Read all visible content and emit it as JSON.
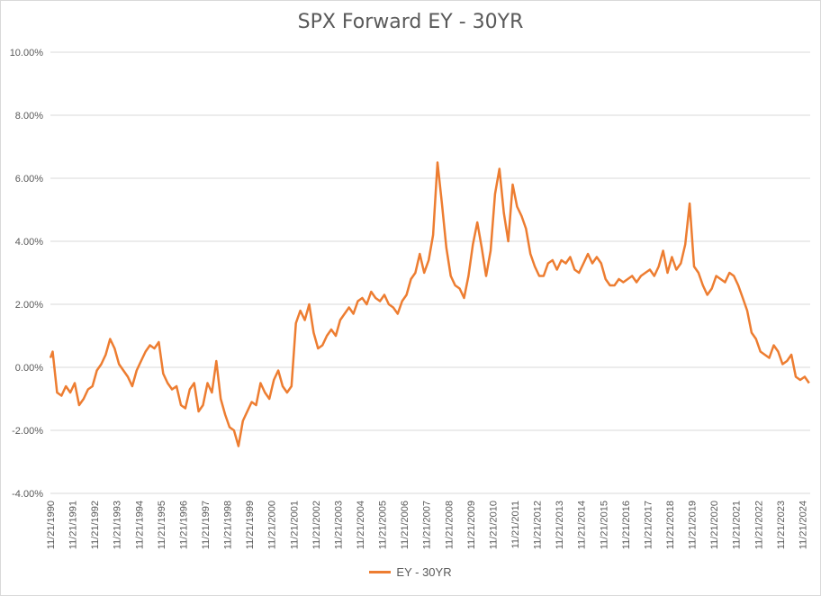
{
  "chart_data": {
    "type": "line",
    "title": "SPX Forward EY - 30YR",
    "xlabel": "",
    "ylabel": "",
    "ylim": [
      -4,
      10
    ],
    "y_ticks": [
      "10.00%",
      "8.00%",
      "6.00%",
      "4.00%",
      "2.00%",
      "0.00%",
      "-2.00%",
      "-4.00%"
    ],
    "x_tick_labels": [
      "11/21/1990",
      "11/21/1991",
      "11/21/1992",
      "11/21/1993",
      "11/21/1994",
      "11/21/1995",
      "11/21/1996",
      "11/21/1997",
      "11/21/1998",
      "11/21/1999",
      "11/21/2000",
      "11/21/2001",
      "11/21/2002",
      "11/21/2003",
      "11/21/2004",
      "11/21/2005",
      "11/21/2006",
      "11/21/2007",
      "11/21/2008",
      "11/21/2009",
      "11/21/2010",
      "11/21/2011",
      "11/21/2012",
      "11/21/2013",
      "11/21/2014",
      "11/21/2015",
      "11/21/2016",
      "11/21/2017",
      "11/21/2018",
      "11/21/2019",
      "11/21/2020",
      "11/21/2021",
      "11/21/2022",
      "11/21/2023",
      "11/21/2024"
    ],
    "grid": true,
    "legend": "bottom",
    "series": [
      {
        "name": "EY - 30YR",
        "color": "#ED7D31",
        "x": [
          1990.9,
          1991.0,
          1991.2,
          1991.4,
          1991.6,
          1991.8,
          1992.0,
          1992.2,
          1992.4,
          1992.6,
          1992.8,
          1993.0,
          1993.2,
          1993.4,
          1993.6,
          1993.8,
          1994.0,
          1994.2,
          1994.4,
          1994.6,
          1994.8,
          1995.0,
          1995.2,
          1995.4,
          1995.6,
          1995.8,
          1996.0,
          1996.2,
          1996.4,
          1996.6,
          1996.8,
          1997.0,
          1997.2,
          1997.4,
          1997.6,
          1997.8,
          1998.0,
          1998.2,
          1998.4,
          1998.6,
          1998.8,
          1999.0,
          1999.2,
          1999.4,
          1999.6,
          1999.8,
          2000.0,
          2000.2,
          2000.4,
          2000.6,
          2000.8,
          2001.0,
          2001.2,
          2001.4,
          2001.6,
          2001.8,
          2002.0,
          2002.2,
          2002.4,
          2002.6,
          2002.8,
          2003.0,
          2003.2,
          2003.4,
          2003.6,
          2003.8,
          2004.0,
          2004.2,
          2004.4,
          2004.6,
          2004.8,
          2005.0,
          2005.2,
          2005.4,
          2005.6,
          2005.8,
          2006.0,
          2006.2,
          2006.4,
          2006.6,
          2006.8,
          2007.0,
          2007.2,
          2007.4,
          2007.6,
          2007.8,
          2008.0,
          2008.2,
          2008.4,
          2008.6,
          2008.8,
          2009.0,
          2009.2,
          2009.4,
          2009.6,
          2009.8,
          2010.0,
          2010.2,
          2010.4,
          2010.6,
          2010.8,
          2011.0,
          2011.2,
          2011.4,
          2011.6,
          2011.8,
          2012.0,
          2012.2,
          2012.4,
          2012.6,
          2012.8,
          2013.0,
          2013.2,
          2013.4,
          2013.6,
          2013.8,
          2014.0,
          2014.2,
          2014.4,
          2014.6,
          2014.8,
          2015.0,
          2015.2,
          2015.4,
          2015.6,
          2015.8,
          2016.0,
          2016.2,
          2016.4,
          2016.6,
          2016.8,
          2017.0,
          2017.2,
          2017.4,
          2017.6,
          2017.8,
          2018.0,
          2018.2,
          2018.4,
          2018.6,
          2018.8,
          2019.0,
          2019.2,
          2019.4,
          2019.6,
          2019.8,
          2020.0,
          2020.2,
          2020.4,
          2020.6,
          2020.8,
          2021.0,
          2021.2,
          2021.4,
          2021.6,
          2021.8,
          2022.0,
          2022.2,
          2022.4,
          2022.6,
          2022.8,
          2023.0,
          2023.2,
          2023.4,
          2023.6,
          2023.8,
          2024.0,
          2024.2,
          2024.4,
          2024.6,
          2024.8,
          2025.0,
          2025.2
        ],
        "values": [
          0.3,
          0.5,
          -0.8,
          -0.9,
          -0.6,
          -0.8,
          -0.5,
          -1.2,
          -1.0,
          -0.7,
          -0.6,
          -0.1,
          0.1,
          0.4,
          0.9,
          0.6,
          0.1,
          -0.1,
          -0.3,
          -0.6,
          -0.1,
          0.2,
          0.5,
          0.7,
          0.6,
          0.8,
          -0.2,
          -0.5,
          -0.7,
          -0.6,
          -1.2,
          -1.3,
          -0.7,
          -0.5,
          -1.4,
          -1.2,
          -0.5,
          -0.8,
          0.2,
          -1.0,
          -1.5,
          -1.9,
          -2.0,
          -2.5,
          -1.7,
          -1.4,
          -1.1,
          -1.2,
          -0.5,
          -0.8,
          -1.0,
          -0.4,
          -0.1,
          -0.6,
          -0.8,
          -0.6,
          1.4,
          1.8,
          1.5,
          2.0,
          1.1,
          0.6,
          0.7,
          1.0,
          1.2,
          1.0,
          1.5,
          1.7,
          1.9,
          1.7,
          2.1,
          2.2,
          2.0,
          2.4,
          2.2,
          2.1,
          2.3,
          2.0,
          1.9,
          1.7,
          2.1,
          2.3,
          2.8,
          3.0,
          3.6,
          3.0,
          3.4,
          4.2,
          6.5,
          5.2,
          3.8,
          2.9,
          2.6,
          2.5,
          2.2,
          2.9,
          3.9,
          4.6,
          3.8,
          2.9,
          3.7,
          5.5,
          6.3,
          4.9,
          4.0,
          5.8,
          5.1,
          4.8,
          4.4,
          3.6,
          3.2,
          2.9,
          2.9,
          3.3,
          3.4,
          3.1,
          3.4,
          3.3,
          3.5,
          3.1,
          3.0,
          3.3,
          3.6,
          3.3,
          3.5,
          3.3,
          2.8,
          2.6,
          2.6,
          2.8,
          2.7,
          2.8,
          2.9,
          2.7,
          2.9,
          3.0,
          3.1,
          2.9,
          3.2,
          3.7,
          3.0,
          3.5,
          3.1,
          3.3,
          3.9,
          5.2,
          3.2,
          3.0,
          2.6,
          2.3,
          2.5,
          2.9,
          2.8,
          2.7,
          3.0,
          2.9,
          2.6,
          2.2,
          1.8,
          1.1,
          0.9,
          0.5,
          0.4,
          0.3,
          0.7,
          0.5,
          0.1,
          0.2,
          0.4,
          -0.3,
          -0.4,
          -0.3,
          -0.5
        ]
      }
    ]
  }
}
